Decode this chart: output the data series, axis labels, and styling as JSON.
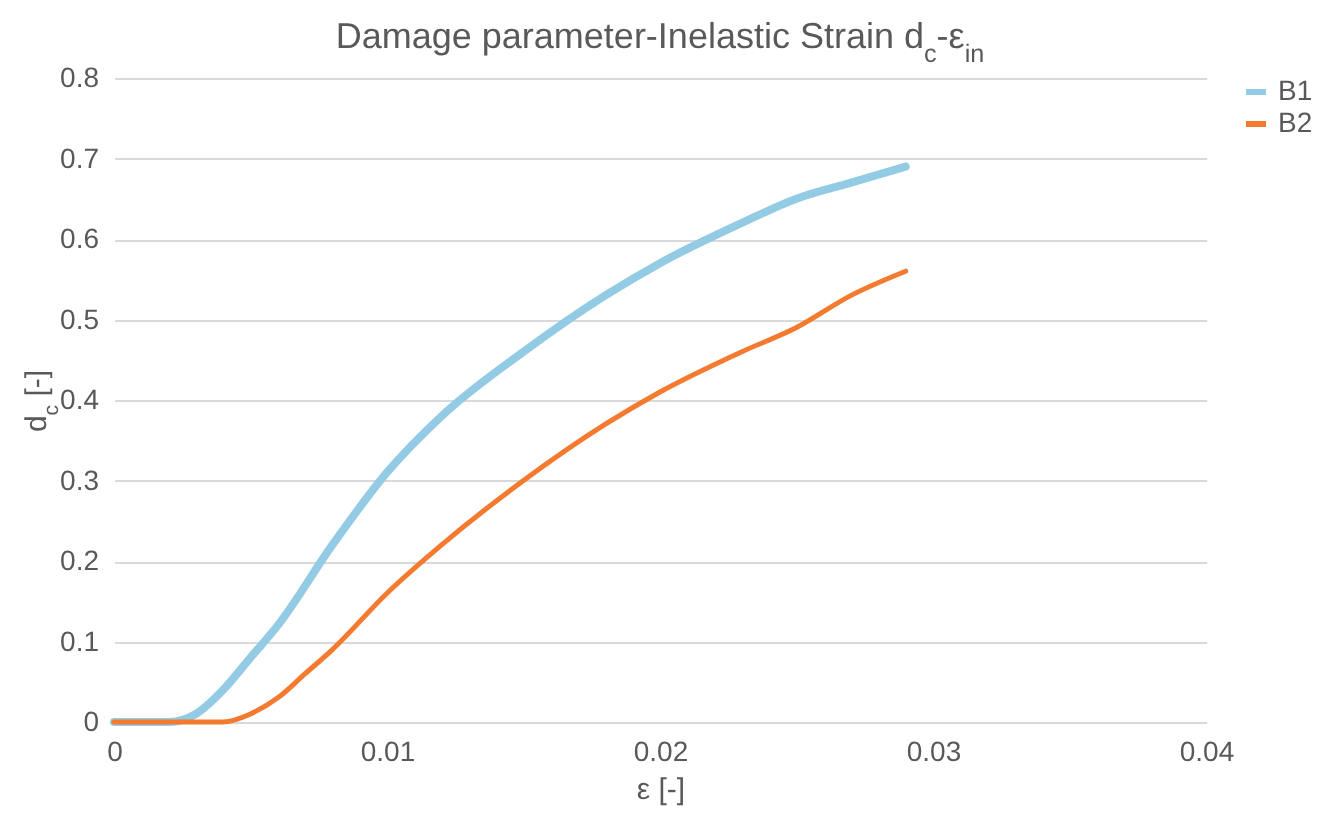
{
  "chart_data": {
    "type": "line",
    "title": "Damage parameter-Inelastic Strain d$_{c}$-ε$_{in}$",
    "xlabel": "ε [-]",
    "ylabel": "d$_{c}$ [-]",
    "xlim": [
      0,
      0.04
    ],
    "xticks": [
      0,
      0.01,
      0.02,
      0.03,
      0.04
    ],
    "ylim": [
      0,
      0.8
    ],
    "yticks": [
      0,
      0.1,
      0.2,
      0.3,
      0.4,
      0.5,
      0.6,
      0.7,
      0.8
    ],
    "grid": "y",
    "legend": "right",
    "marker": "none",
    "line_style": "solid",
    "series": [
      {
        "name": "B1",
        "color": "#92cbe3",
        "x": [
          0,
          0.002,
          0.003,
          0.004,
          0.005,
          0.006,
          0.008,
          0.01,
          0.012,
          0.015,
          0.018,
          0.02,
          0.023,
          0.025,
          0.027,
          0.029
        ],
        "values": [
          0,
          0,
          0.01,
          0.04,
          0.08,
          0.12,
          0.22,
          0.31,
          0.38,
          0.46,
          0.53,
          0.57,
          0.62,
          0.65,
          0.67,
          0.69
        ]
      },
      {
        "name": "B2",
        "color": "#f47a30",
        "x": [
          0,
          0.004,
          0.005,
          0.006,
          0.007,
          0.008,
          0.01,
          0.012,
          0.015,
          0.018,
          0.02,
          0.023,
          0.025,
          0.027,
          0.029
        ],
        "values": [
          0,
          0,
          0.01,
          0.03,
          0.06,
          0.09,
          0.16,
          0.22,
          0.3,
          0.37,
          0.41,
          0.46,
          0.49,
          0.53,
          0.56
        ]
      }
    ]
  }
}
